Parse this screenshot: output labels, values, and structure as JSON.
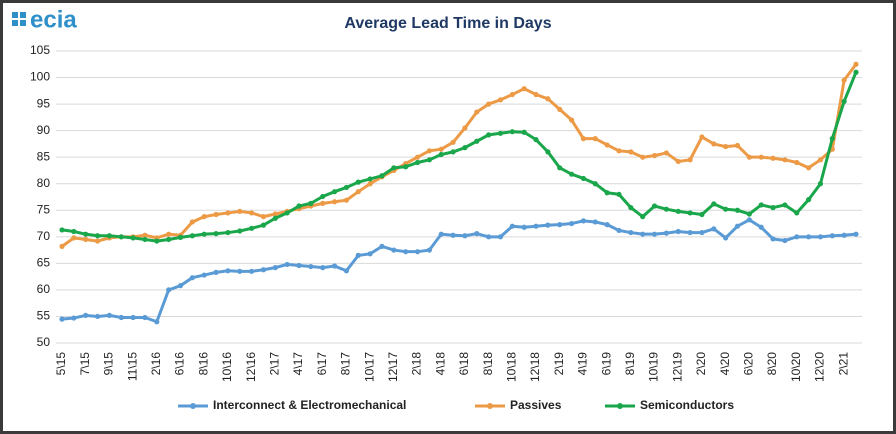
{
  "logo": "ecia",
  "chart_data": {
    "type": "line",
    "title": "Average Lead Time in Days",
    "categories": [
      "5\\15",
      null,
      "7\\15",
      null,
      "9\\15",
      null,
      "11\\15",
      null,
      "2\\16",
      null,
      "6\\16",
      null,
      "8\\16",
      null,
      "10\\16",
      null,
      "12\\16",
      null,
      "2\\17",
      null,
      "4\\17",
      null,
      "6\\17",
      null,
      "8\\17",
      null,
      "10\\17",
      null,
      "12\\17",
      null,
      "2\\18",
      null,
      "4\\18",
      null,
      "6\\18",
      null,
      "8\\18",
      null,
      "10\\18",
      null,
      "12\\18",
      null,
      "2\\19",
      null,
      "4\\19",
      null,
      "6\\19",
      null,
      "8\\19",
      null,
      "10\\19",
      null,
      "12\\19",
      null,
      "2\\20",
      null,
      "4\\20",
      null,
      "6\\20",
      null,
      "8\\20",
      null,
      "10\\20",
      null,
      "12\\20",
      null,
      "2\\21",
      null
    ],
    "series": [
      {
        "name": "Interconnect & Electromechanical",
        "color": "#5b9bd5",
        "values": [
          54.5,
          54.7,
          55.2,
          55,
          55.2,
          54.8,
          54.8,
          54.8,
          54,
          60,
          60.8,
          62.3,
          62.8,
          63.3,
          63.6,
          63.5,
          63.5,
          63.8,
          64.2,
          64.8,
          64.6,
          64.4,
          64.2,
          64.5,
          63.6,
          66.5,
          66.8,
          68.2,
          67.5,
          67.2,
          67.2,
          67.5,
          70.5,
          70.3,
          70.2,
          70.6,
          70,
          70,
          72,
          71.8,
          72,
          72.2,
          72.3,
          72.5,
          73,
          72.8,
          72.3,
          71.2,
          70.8,
          70.5,
          70.5,
          70.7,
          71,
          70.8,
          70.8,
          71.5,
          69.8,
          72,
          73.2,
          71.8,
          69.6,
          69.3,
          70,
          70,
          70,
          70.2,
          70.3,
          70.5
        ]
      },
      {
        "name": "Passives",
        "color": "#ed9a46",
        "values": [
          68.2,
          69.8,
          69.5,
          69.2,
          69.8,
          70,
          70,
          70.3,
          69.8,
          70.5,
          70.3,
          72.8,
          73.8,
          74.2,
          74.5,
          74.8,
          74.5,
          73.8,
          74.3,
          74.8,
          75.3,
          75.8,
          76.3,
          76.6,
          76.9,
          78.5,
          80,
          81.3,
          82.5,
          83.8,
          85,
          86.2,
          86.5,
          87.8,
          90.5,
          93.5,
          95,
          95.8,
          96.8,
          97.9,
          96.8,
          96,
          94,
          92,
          88.5,
          88.5,
          87.3,
          86.2,
          86,
          85,
          85.3,
          85.8,
          84.2,
          84.5,
          88.8,
          87.5,
          87,
          87.2,
          85,
          85,
          84.8,
          84.5,
          84,
          83,
          84.5,
          86.5,
          99.5,
          102.5
        ]
      },
      {
        "name": "Semiconductors",
        "color": "#1aa64a",
        "values": [
          71.3,
          71,
          70.5,
          70.2,
          70.2,
          70,
          69.8,
          69.5,
          69.2,
          69.5,
          69.9,
          70.2,
          70.5,
          70.6,
          70.8,
          71.1,
          71.6,
          72.2,
          73.5,
          74.5,
          75.8,
          76.3,
          77.6,
          78.5,
          79.3,
          80.3,
          80.9,
          81.5,
          83,
          83.2,
          84,
          84.5,
          85.5,
          86,
          86.8,
          88,
          89.2,
          89.5,
          89.8,
          89.7,
          88.3,
          86,
          83,
          81.8,
          81,
          80,
          78.3,
          78,
          75.5,
          73.8,
          75.8,
          75.2,
          74.8,
          74.5,
          74.2,
          76.2,
          75.2,
          75,
          74.3,
          76,
          75.5,
          76,
          74.5,
          77,
          80,
          88.5,
          95.5,
          101
        ]
      }
    ],
    "ylim": [
      50,
      105
    ],
    "yticks": [
      50,
      55,
      60,
      65,
      70,
      75,
      80,
      85,
      90,
      95,
      100,
      105
    ],
    "grid": true,
    "legend": "bottom"
  }
}
